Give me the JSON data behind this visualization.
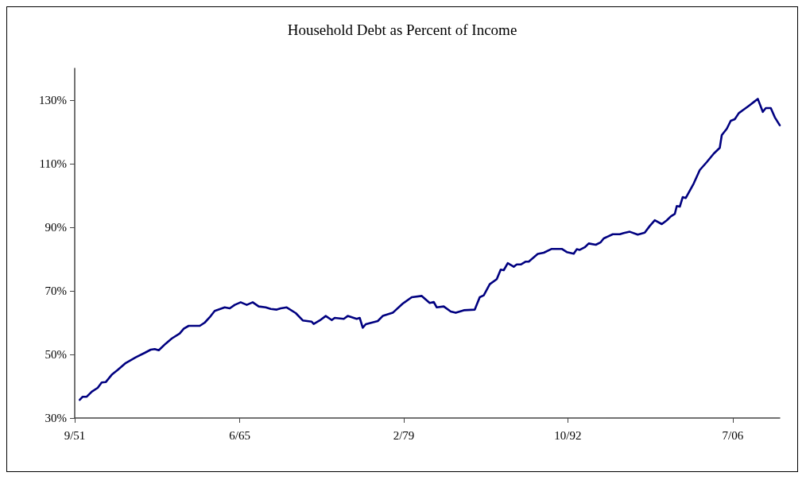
{
  "chart_data": {
    "type": "line",
    "title": "Household Debt as Percent of Income",
    "x": [
      "1952-02",
      "1952-05",
      "1952-09",
      "1953-02",
      "1953-08",
      "1953-12",
      "1954-04",
      "1954-10",
      "1955-04",
      "1955-12",
      "1956-10",
      "1957-07",
      "1958-01",
      "1958-05",
      "1958-09",
      "1959-04",
      "1959-10",
      "1960-06",
      "1960-10",
      "1961-03",
      "1962-02",
      "1962-07",
      "1962-12",
      "1963-05",
      "1964-03",
      "1964-08",
      "1965-01",
      "1965-07",
      "1966-01",
      "1966-07",
      "1967-01",
      "1967-08",
      "1968-01",
      "1968-07",
      "1968-11",
      "1969-05",
      "1970-02",
      "1970-09",
      "1971-06",
      "1971-08",
      "1972-02",
      "1972-08",
      "1973-02",
      "1973-05",
      "1974-02",
      "1974-06",
      "1975-03",
      "1975-06",
      "1975-09",
      "1975-12",
      "1976-12",
      "1977-05",
      "1978-03",
      "1979-01",
      "1979-10",
      "1980-08",
      "1981-04",
      "1981-08",
      "1981-11",
      "1982-06",
      "1983-01",
      "1983-06",
      "1984-02",
      "1985-01",
      "1985-06",
      "1985-10",
      "1986-04",
      "1986-11",
      "1987-03",
      "1987-06",
      "1987-10",
      "1988-04",
      "1988-07",
      "1988-11",
      "1989-04",
      "1989-07",
      "1990-04",
      "1990-10",
      "1991-06",
      "1992-04",
      "1992-09",
      "1993-04",
      "1993-07",
      "1993-10",
      "1994-03",
      "1994-07",
      "1995-02",
      "1995-07",
      "1995-10",
      "1996-07",
      "1997-02",
      "1997-06",
      "1997-12",
      "1998-08",
      "1999-03",
      "1999-08",
      "2000-01",
      "2000-08",
      "2001-01",
      "2001-05",
      "2001-09",
      "2001-11",
      "2002-02",
      "2002-05",
      "2002-08",
      "2003-04",
      "2003-10",
      "2004-05",
      "2004-12",
      "2005-06",
      "2005-08",
      "2006-01",
      "2006-05",
      "2006-09",
      "2007-01",
      "2007-05",
      "2007-11",
      "2008-04",
      "2008-08",
      "2009-01",
      "2009-04",
      "2009-09",
      "2010-01",
      "2010-06"
    ],
    "series": [
      {
        "color": "#000080",
        "values": [
          35.7,
          36.7,
          36.7,
          38.3,
          39.5,
          41.2,
          41.3,
          43.6,
          45.1,
          47.3,
          49.1,
          50.5,
          51.5,
          51.7,
          51.3,
          53.4,
          55.0,
          56.6,
          58.1,
          59.0,
          59.0,
          60.0,
          61.7,
          63.7,
          64.8,
          64.5,
          65.6,
          66.4,
          65.6,
          66.4,
          65.1,
          64.8,
          64.3,
          64.1,
          64.5,
          64.8,
          63.0,
          60.7,
          60.3,
          59.6,
          60.7,
          62.1,
          60.8,
          61.5,
          61.2,
          62.1,
          61.2,
          61.5,
          58.4,
          59.5,
          60.5,
          62.1,
          63.1,
          66.0,
          68.0,
          68.4,
          66.2,
          66.5,
          64.8,
          65.1,
          63.5,
          63.1,
          63.9,
          64.1,
          68.0,
          68.6,
          72.1,
          73.7,
          76.7,
          76.5,
          78.7,
          77.6,
          78.3,
          78.3,
          79.2,
          79.2,
          81.6,
          82.0,
          83.2,
          83.2,
          82.2,
          81.7,
          83.1,
          82.9,
          83.7,
          84.9,
          84.5,
          85.3,
          86.5,
          87.8,
          87.8,
          88.2,
          88.6,
          87.7,
          88.3,
          90.4,
          92.2,
          91.0,
          92.2,
          93.4,
          94.2,
          96.7,
          96.5,
          99.5,
          99.2,
          103.8,
          108.0,
          110.5,
          113.2,
          115.0,
          119.0,
          121.0,
          123.5,
          124.0,
          125.9,
          126.8,
          128.2,
          129.4,
          130.4,
          126.3,
          127.5,
          127.5,
          124.6,
          122.1
        ]
      }
    ],
    "xlim": [
      "1951-09",
      "2010-06"
    ],
    "xticks": [
      {
        "value": "1951-09",
        "label": "9/51"
      },
      {
        "value": "1965-06",
        "label": "6/65"
      },
      {
        "value": "1979-02",
        "label": "2/79"
      },
      {
        "value": "1992-10",
        "label": "10/92"
      },
      {
        "value": "2006-07",
        "label": "7/06"
      }
    ],
    "ylim": [
      30,
      140
    ],
    "yticks": [
      {
        "value": 30,
        "label": "30%"
      },
      {
        "value": 50,
        "label": "50%"
      },
      {
        "value": 70,
        "label": "70%"
      },
      {
        "value": 90,
        "label": "90%"
      },
      {
        "value": 110,
        "label": "110%"
      },
      {
        "value": 130,
        "label": "130%"
      }
    ],
    "grid": false,
    "marker": "none",
    "line_style": "solid"
  }
}
